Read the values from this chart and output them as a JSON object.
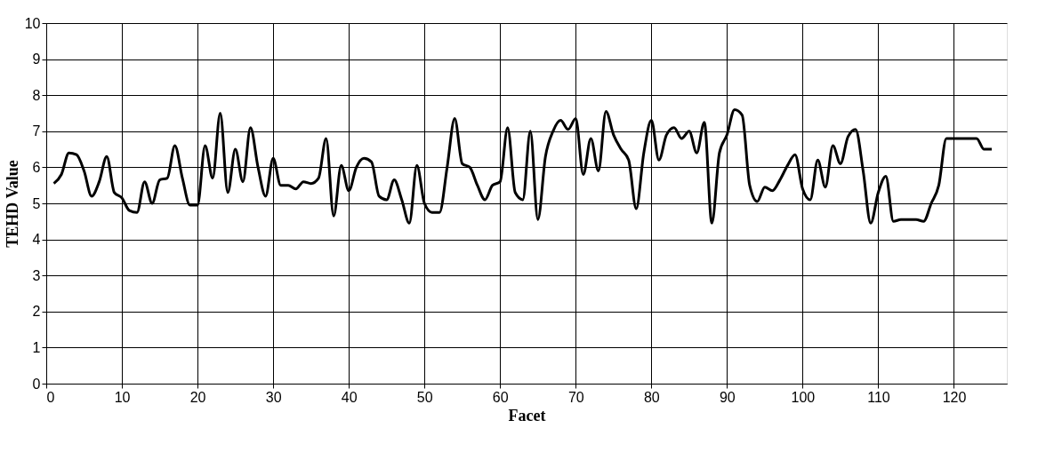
{
  "chart_data": {
    "type": "line",
    "xlabel": "Facet",
    "ylabel": "TEHD Value",
    "x": [
      1,
      2,
      3,
      4,
      5,
      6,
      7,
      8,
      9,
      10,
      11,
      12,
      13,
      14,
      15,
      16,
      17,
      18,
      19,
      20,
      21,
      22,
      23,
      24,
      25,
      26,
      27,
      28,
      29,
      30,
      31,
      32,
      33,
      34,
      35,
      36,
      37,
      38,
      39,
      40,
      41,
      42,
      43,
      44,
      45,
      46,
      47,
      48,
      49,
      50,
      51,
      52,
      53,
      54,
      55,
      56,
      57,
      58,
      59,
      60,
      61,
      62,
      63,
      64,
      65,
      66,
      67,
      68,
      69,
      70,
      71,
      72,
      73,
      74,
      75,
      76,
      77,
      78,
      79,
      80,
      81,
      82,
      83,
      84,
      85,
      86,
      87,
      88,
      89,
      90,
      91,
      92,
      93,
      94,
      95,
      96,
      97,
      98,
      99,
      100,
      101,
      102,
      103,
      104,
      105,
      106,
      107,
      108,
      109,
      110,
      111,
      112,
      113,
      114,
      115,
      116,
      117,
      118,
      119,
      120,
      121,
      122,
      123,
      124,
      125
    ],
    "series": [
      {
        "color": "#000000",
        "values": [
          5.55,
          5.8,
          6.4,
          6.35,
          5.9,
          5.2,
          5.6,
          6.3,
          5.3,
          5.15,
          4.8,
          4.75,
          5.6,
          5.0,
          5.65,
          5.7,
          6.6,
          5.7,
          4.95,
          4.95,
          6.6,
          5.7,
          7.5,
          5.3,
          6.5,
          5.6,
          7.1,
          6.0,
          5.2,
          6.25,
          5.5,
          5.5,
          5.4,
          5.6,
          5.55,
          5.7,
          6.8,
          4.65,
          6.05,
          5.35,
          6.0,
          6.25,
          6.15,
          5.2,
          5.1,
          5.65,
          5.1,
          4.45,
          6.05,
          5.0,
          4.75,
          4.75,
          6.0,
          7.35,
          6.1,
          6.0,
          5.5,
          5.1,
          5.5,
          5.6,
          7.1,
          5.3,
          5.1,
          7.0,
          4.55,
          6.3,
          7.0,
          7.3,
          7.05,
          7.35,
          5.8,
          6.8,
          5.9,
          7.55,
          6.9,
          6.5,
          6.2,
          4.85,
          6.4,
          7.3,
          6.2,
          6.9,
          7.1,
          6.8,
          7.0,
          6.4,
          7.25,
          4.45,
          6.4,
          6.9,
          7.6,
          7.45,
          5.5,
          5.05,
          5.45,
          5.35,
          5.65,
          6.05,
          6.35,
          5.4,
          5.1,
          6.2,
          5.45,
          6.6,
          6.1,
          6.85,
          7.05,
          5.9,
          4.45,
          5.3,
          5.75,
          4.5,
          4.55,
          4.55,
          4.55,
          4.5,
          5.0,
          5.5,
          6.8,
          6.8,
          6.8,
          6.8,
          6.8,
          6.5,
          6.5
        ]
      }
    ],
    "xlim": [
      0,
      127
    ],
    "xticks": [
      0,
      10,
      20,
      30,
      40,
      50,
      60,
      70,
      80,
      90,
      100,
      110,
      120
    ],
    "ylim": [
      0,
      10
    ],
    "yticks": [
      0,
      1,
      2,
      3,
      4,
      5,
      6,
      7,
      8,
      9,
      10
    ],
    "grid": true,
    "marker": "none",
    "line_style": "solid"
  }
}
